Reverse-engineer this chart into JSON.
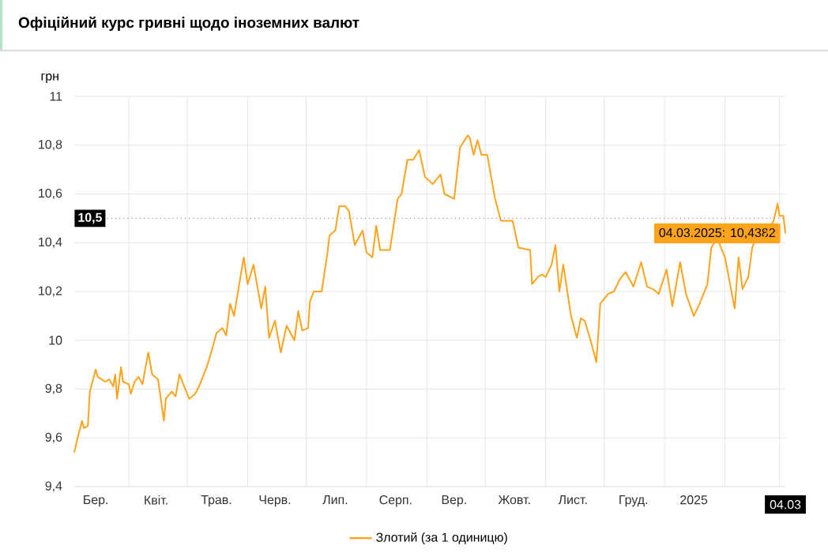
{
  "chart_data": {
    "type": "line",
    "title": "Офіційний курс гривні щодо іноземних валют",
    "ylabel": "грн",
    "xlim": [
      "2024-03-04",
      "2025-03-04"
    ],
    "ylim": [
      9.4,
      11
    ],
    "yticks": [
      {
        "value": 9.4,
        "label": "9,4"
      },
      {
        "value": 9.6,
        "label": "9,6"
      },
      {
        "value": 9.8,
        "label": "9,8"
      },
      10,
      {
        "value": 10.2,
        "label": "10,2"
      },
      {
        "value": 10.4,
        "label": "10,4"
      },
      {
        "value": 10.6,
        "label": "10,6"
      },
      {
        "value": 10.8,
        "label": "10,8"
      },
      11
    ],
    "xticks": [
      {
        "value": "2024-03-15",
        "label": "Бер."
      },
      {
        "value": "2024-04-15",
        "label": "Квіт."
      },
      {
        "value": "2024-05-16",
        "label": "Трав."
      },
      {
        "value": "2024-06-15",
        "label": "Черв."
      },
      {
        "value": "2024-07-16",
        "label": "Лип."
      },
      {
        "value": "2024-08-16",
        "label": "Серп."
      },
      {
        "value": "2024-09-15",
        "label": "Вер."
      },
      {
        "value": "2024-10-16",
        "label": "Жовт."
      },
      {
        "value": "2024-11-15",
        "label": "Лист."
      },
      {
        "value": "2024-12-16",
        "label": "Груд."
      },
      {
        "value": "2025-01-16",
        "label": "2025"
      },
      {
        "value": "2025-03-04",
        "label": "04.03"
      },
      {
        "value": "2024-04-01",
        "label": null
      },
      {
        "value": "2024-05-01",
        "label": null
      },
      {
        "value": "2024-06-01",
        "label": null
      },
      {
        "value": "2024-07-01",
        "label": null
      },
      {
        "value": "2024-08-01",
        "label": null
      },
      {
        "value": "2024-09-01",
        "label": null
      },
      {
        "value": "2024-10-01",
        "label": null
      },
      {
        "value": "2024-11-01",
        "label": null
      },
      {
        "value": "2024-12-01",
        "label": null
      },
      {
        "value": "2025-01-01",
        "label": null
      },
      {
        "value": "2025-02-01",
        "label": null
      },
      {
        "value": "2025-03-01",
        "label": null
      }
    ],
    "grid": true,
    "legend": "bottom",
    "marker": "none",
    "line_style": "solid",
    "ref_lines": [
      {
        "axis": "y",
        "value": 10.5,
        "label": "10,5",
        "color": "#999999",
        "line_style": "dotted"
      }
    ],
    "annotations": [
      {
        "text": "04.03.2025: 10,4382",
        "x": "2025-03-04",
        "y": 10.4382
      }
    ],
    "series": [
      {
        "name": "Злотий (за 1 одиницю)",
        "color": "#ffa31a",
        "x": [
          "2024-03-04",
          "2024-03-06",
          "2024-03-08",
          "2024-03-09",
          "2024-03-11",
          "2024-03-12",
          "2024-03-15",
          "2024-03-16",
          "2024-03-20",
          "2024-03-22",
          "2024-03-24",
          "2024-03-25",
          "2024-03-26",
          "2024-03-28",
          "2024-03-29",
          "2024-04-01",
          "2024-04-02",
          "2024-04-04",
          "2024-04-06",
          "2024-04-08",
          "2024-04-11",
          "2024-04-13",
          "2024-04-16",
          "2024-04-19",
          "2024-04-20",
          "2024-04-23",
          "2024-04-25",
          "2024-04-27",
          "2024-04-29",
          "2024-05-02",
          "2024-05-05",
          "2024-05-07",
          "2024-05-11",
          "2024-05-14",
          "2024-05-16",
          "2024-05-19",
          "2024-05-21",
          "2024-05-23",
          "2024-05-25",
          "2024-05-26",
          "2024-05-30",
          "2024-06-01",
          "2024-06-04",
          "2024-06-08",
          "2024-06-10",
          "2024-06-12",
          "2024-06-15",
          "2024-06-18",
          "2024-06-21",
          "2024-06-25",
          "2024-06-27",
          "2024-06-29",
          "2024-07-02",
          "2024-07-03",
          "2024-07-05",
          "2024-07-09",
          "2024-07-12",
          "2024-07-13",
          "2024-07-16",
          "2024-07-18",
          "2024-07-21",
          "2024-07-23",
          "2024-07-26",
          "2024-07-30",
          "2024-08-01",
          "2024-08-04",
          "2024-08-06",
          "2024-08-08",
          "2024-08-13",
          "2024-08-17",
          "2024-08-19",
          "2024-08-22",
          "2024-08-25",
          "2024-08-28",
          "2024-08-31",
          "2024-09-04",
          "2024-09-08",
          "2024-09-10",
          "2024-09-15",
          "2024-09-18",
          "2024-09-22",
          "2024-09-23",
          "2024-09-25",
          "2024-09-27",
          "2024-09-29",
          "2024-10-02",
          "2024-10-06",
          "2024-10-09",
          "2024-10-12",
          "2024-10-15",
          "2024-10-18",
          "2024-10-24",
          "2024-10-25",
          "2024-10-28",
          "2024-10-30",
          "2024-11-01",
          "2024-11-04",
          "2024-11-06",
          "2024-11-08",
          "2024-11-10",
          "2024-11-14",
          "2024-11-17",
          "2024-11-19",
          "2024-11-21",
          "2024-11-24",
          "2024-11-27",
          "2024-11-29",
          "2024-12-03",
          "2024-12-06",
          "2024-12-09",
          "2024-12-12",
          "2024-12-16",
          "2024-12-20",
          "2024-12-23",
          "2024-12-26",
          "2024-12-29",
          "2025-01-02",
          "2025-01-05",
          "2025-01-09",
          "2025-01-12",
          "2025-01-16",
          "2025-01-19",
          "2025-01-23",
          "2025-01-25",
          "2025-01-28",
          "2025-02-01",
          "2025-02-06",
          "2025-02-08",
          "2025-02-10",
          "2025-02-13",
          "2025-02-15",
          "2025-02-17",
          "2025-02-21",
          "2025-02-26",
          "2025-02-28",
          "2025-03-01",
          "2025-03-03",
          "2025-03-04"
        ],
        "values": [
          9.54,
          9.61,
          9.67,
          9.64,
          9.65,
          9.79,
          9.88,
          9.85,
          9.83,
          9.84,
          9.81,
          9.86,
          9.76,
          9.89,
          9.83,
          9.82,
          9.78,
          9.83,
          9.85,
          9.82,
          9.95,
          9.86,
          9.84,
          9.67,
          9.76,
          9.79,
          9.77,
          9.86,
          9.82,
          9.76,
          9.78,
          9.81,
          9.89,
          9.97,
          10.03,
          10.05,
          10.02,
          10.15,
          10.1,
          10.15,
          10.34,
          10.23,
          10.31,
          10.13,
          10.22,
          10.01,
          10.08,
          9.95,
          10.06,
          10.0,
          10.12,
          10.04,
          10.05,
          10.16,
          10.2,
          10.2,
          10.36,
          10.43,
          10.45,
          10.55,
          10.55,
          10.53,
          10.39,
          10.45,
          10.36,
          10.34,
          10.47,
          10.37,
          10.37,
          10.58,
          10.6,
          10.74,
          10.74,
          10.78,
          10.67,
          10.64,
          10.68,
          10.6,
          10.58,
          10.79,
          10.84,
          10.83,
          10.76,
          10.82,
          10.76,
          10.76,
          10.58,
          10.49,
          10.49,
          10.49,
          10.38,
          10.37,
          10.23,
          10.26,
          10.27,
          10.26,
          10.31,
          10.39,
          10.2,
          10.31,
          10.1,
          10.01,
          10.09,
          10.08,
          10.0,
          9.91,
          10.15,
          10.19,
          10.2,
          10.25,
          10.28,
          10.22,
          10.32,
          10.22,
          10.21,
          10.19,
          10.29,
          10.14,
          10.32,
          10.19,
          10.1,
          10.15,
          10.23,
          10.38,
          10.42,
          10.34,
          10.13,
          10.34,
          10.21,
          10.26,
          10.38,
          10.42,
          10.42,
          10.49,
          10.56,
          10.51,
          10.51,
          10.4382
        ]
      }
    ]
  }
}
